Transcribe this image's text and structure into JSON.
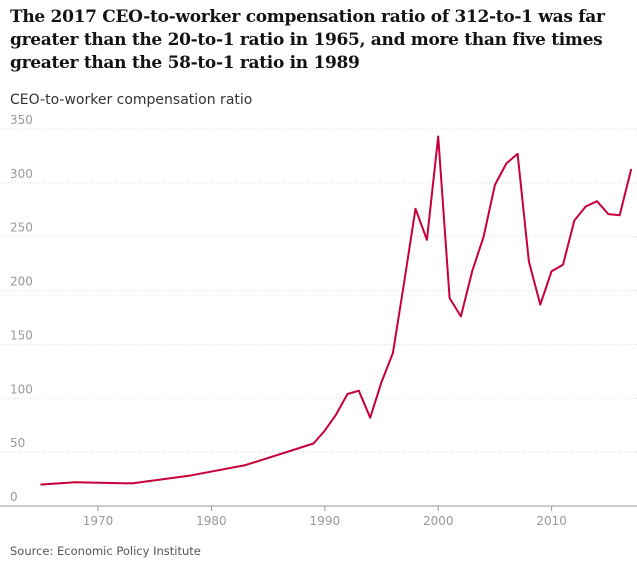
{
  "title": "The 2017 CEO-to-worker compensation ratio of 312-to-1 was far greater than the 20-to-1 ratio in 1965, and more than five times greater than the 58-to-1 ratio in 1989",
  "source": "Source: Economic Policy Institute",
  "colors": {
    "line": "#c70039",
    "grid": "#dcdcdc",
    "axis": "#999999"
  },
  "chart_data": {
    "type": "line",
    "title": "The 2017 CEO-to-worker compensation ratio of 312-to-1 was far greater than the 20-to-1 ratio in 1965, and more than five times greater than the 58-to-1 ratio in 1989",
    "ylabel": "CEO-to-worker compensation ratio",
    "xlabel": "",
    "xlim": [
      1964,
      2017
    ],
    "ylim": [
      0,
      350
    ],
    "yticks": [
      "0",
      "50",
      "100",
      "150",
      "200",
      "250",
      "300",
      "350"
    ],
    "xticks": [
      "1970",
      "1980",
      "1990",
      "2000",
      "2010"
    ],
    "grid": true,
    "series": [
      {
        "name": "CEO-to-worker compensation ratio",
        "x": [
          1965,
          1968,
          1973,
          1978,
          1983,
          1989,
          1990,
          1991,
          1992,
          1993,
          1994,
          1995,
          1996,
          1997,
          1998,
          1999,
          2000,
          2001,
          2002,
          2003,
          2004,
          2005,
          2006,
          2007,
          2008,
          2009,
          2010,
          2011,
          2012,
          2013,
          2014,
          2015,
          2016,
          2017
        ],
        "y": [
          20,
          22,
          21,
          28,
          38,
          58,
          70,
          85,
          104,
          107,
          82,
          115,
          142,
          208,
          276,
          247,
          343,
          193,
          176,
          218,
          250,
          298,
          318,
          327,
          227,
          187,
          218,
          224,
          265,
          278,
          283,
          271,
          270,
          312
        ]
      }
    ]
  }
}
